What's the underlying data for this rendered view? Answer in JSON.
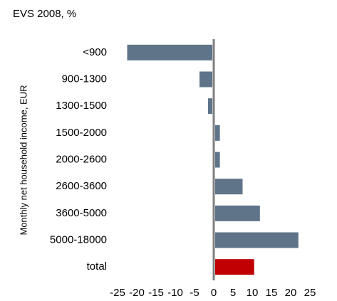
{
  "chart_data": {
    "type": "barh",
    "title": "EVS 2008, %",
    "y_label": "Monthly net household income, EUR",
    "categories": [
      "<900",
      "900-1300",
      "1300-1500",
      "1500-2000",
      "2000-2600",
      "2600-3600",
      "3600-5000",
      "5000-18000",
      "total"
    ],
    "values": [
      -22.5,
      -3.7,
      -1.5,
      1.6,
      1.6,
      7.5,
      12,
      22,
      10.5
    ],
    "colors": [
      "#5f7489",
      "#5f7489",
      "#5f7489",
      "#5f7489",
      "#5f7489",
      "#5f7489",
      "#5f7489",
      "#5f7489",
      "#c00000"
    ],
    "xlim": [
      -25,
      25
    ],
    "xticks": [
      -25,
      -20,
      -15,
      -10,
      -5,
      0,
      5,
      10,
      15,
      20,
      25
    ],
    "grid": false
  }
}
